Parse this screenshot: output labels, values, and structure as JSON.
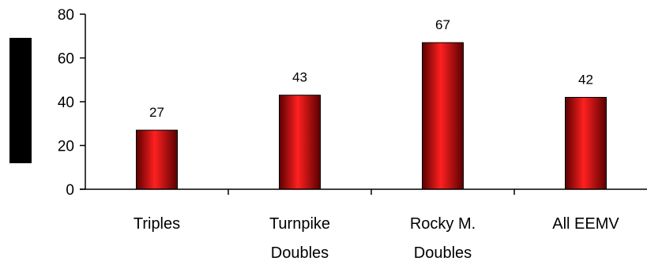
{
  "chart_data": {
    "type": "bar",
    "categories": [
      [
        "Triples"
      ],
      [
        "Turnpike",
        "Doubles"
      ],
      [
        "Rocky M.",
        "Doubles"
      ],
      [
        "All EEMV"
      ]
    ],
    "values": [
      27,
      43,
      67,
      42
    ],
    "data_labels": [
      "27",
      "43",
      "67",
      "42"
    ],
    "ylim": [
      0,
      80
    ],
    "yticks": [
      0,
      20,
      40,
      60,
      80
    ],
    "ytick_labels": [
      "0",
      "20",
      "40",
      "60",
      "80"
    ],
    "grid": false,
    "legend": "none",
    "title": "",
    "xlabel": "",
    "ylabel": ""
  },
  "colors": {
    "bar_center": "#ff2020",
    "bar_edge": "#5a0000",
    "axis": "#000000",
    "ylabel_block": "#000000"
  }
}
